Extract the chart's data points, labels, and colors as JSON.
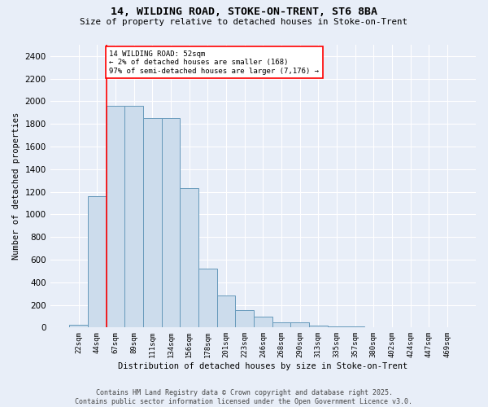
{
  "title_line1": "14, WILDING ROAD, STOKE-ON-TRENT, ST6 8BA",
  "title_line2": "Size of property relative to detached houses in Stoke-on-Trent",
  "xlabel": "Distribution of detached houses by size in Stoke-on-Trent",
  "ylabel": "Number of detached properties",
  "categories": [
    "22sqm",
    "44sqm",
    "67sqm",
    "89sqm",
    "111sqm",
    "134sqm",
    "156sqm",
    "178sqm",
    "201sqm",
    "223sqm",
    "246sqm",
    "268sqm",
    "290sqm",
    "313sqm",
    "335sqm",
    "357sqm",
    "380sqm",
    "402sqm",
    "424sqm",
    "447sqm",
    "469sqm"
  ],
  "values": [
    25,
    1160,
    1960,
    1960,
    1855,
    1855,
    1230,
    520,
    280,
    155,
    95,
    45,
    45,
    15,
    10,
    8,
    5,
    3,
    2,
    2,
    2
  ],
  "bar_color": "#ccdcec",
  "bar_edge_color": "#6699bb",
  "annotation_text": "14 WILDING ROAD: 52sqm\n← 2% of detached houses are smaller (168)\n97% of semi-detached houses are larger (7,176) →",
  "annotation_box_color": "white",
  "annotation_box_edge_color": "red",
  "vline_color": "red",
  "vline_x": 1.5,
  "ylim": [
    0,
    2500
  ],
  "yticks": [
    0,
    200,
    400,
    600,
    800,
    1000,
    1200,
    1400,
    1600,
    1800,
    2000,
    2200,
    2400
  ],
  "background_color": "#e8eef8",
  "grid_color": "white",
  "footer_line1": "Contains HM Land Registry data © Crown copyright and database right 2025.",
  "footer_line2": "Contains public sector information licensed under the Open Government Licence v3.0."
}
